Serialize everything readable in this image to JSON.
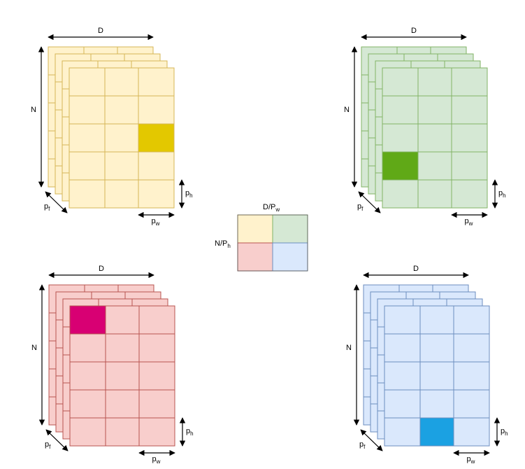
{
  "labels": {
    "D": "D",
    "N": "N",
    "p": "p",
    "f": "f",
    "h": "h",
    "w": "w",
    "legend_top_main": "D/P",
    "legend_top_sub": "w",
    "legend_left_main": "N/P",
    "legend_left_sub": "h"
  },
  "colors": {
    "yellow_fill": "#fff2cc",
    "yellow_stroke": "#d6b656",
    "yellow_highlight": "#e3c800",
    "green_fill": "#d5e8d4",
    "green_stroke": "#82b366",
    "green_highlight": "#60a917",
    "red_fill": "#f8cecc",
    "red_stroke": "#b85450",
    "red_highlight": "#d80073",
    "blue_fill": "#dae8fc",
    "blue_stroke": "#6c8ebf",
    "blue_highlight": "#1ba1e2"
  },
  "grid": {
    "rows": 5,
    "cols": 3,
    "layers": 4
  },
  "tensors": [
    {
      "name": "yellow",
      "highlight_row": 2,
      "highlight_col": 2
    },
    {
      "name": "green",
      "highlight_row": 3,
      "highlight_col": 0
    },
    {
      "name": "red",
      "highlight_row": 0,
      "highlight_col": 0
    },
    {
      "name": "blue",
      "highlight_row": 4,
      "highlight_col": 1
    }
  ],
  "legend": {
    "cells": [
      "yellow",
      "green",
      "red",
      "blue"
    ]
  }
}
